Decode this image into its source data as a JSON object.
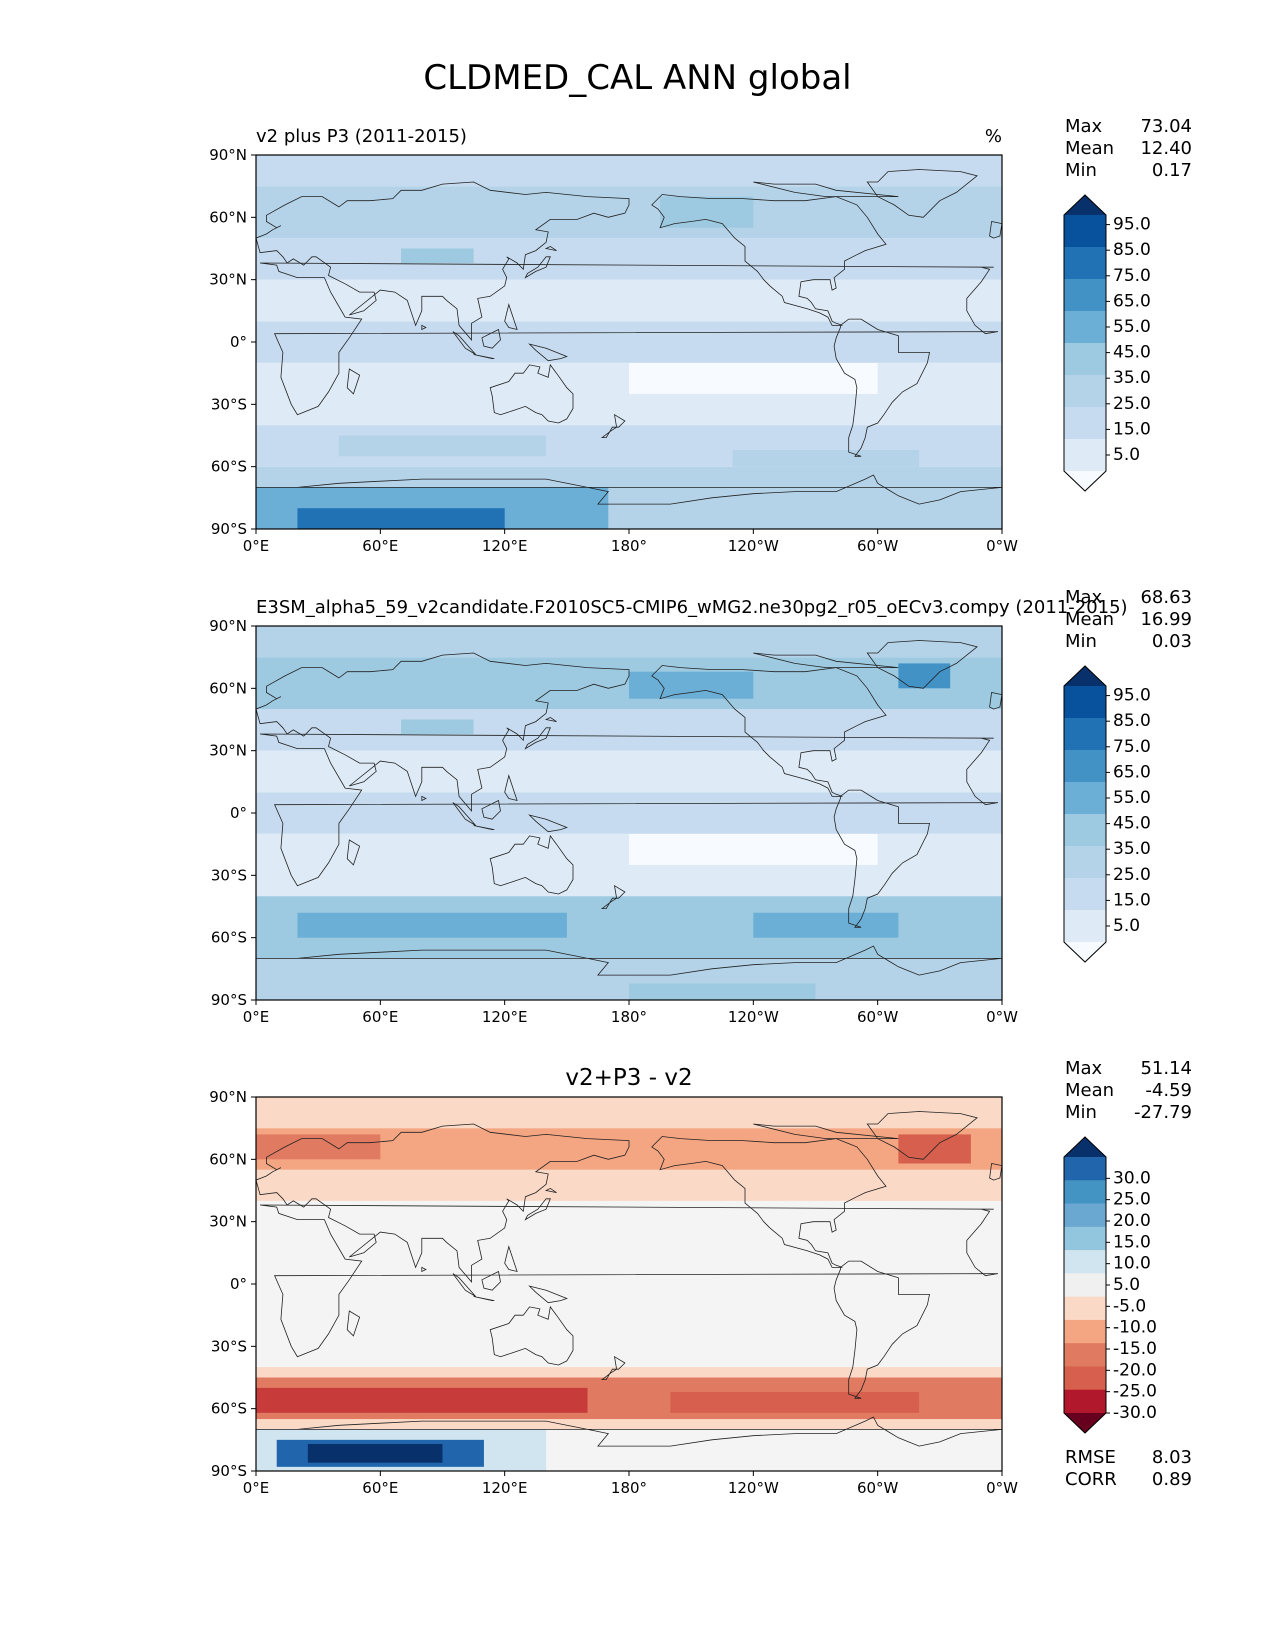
{
  "title": "CLDMED_CAL ANN global",
  "panels": [
    {
      "id": "test",
      "left_title": "v2 plus P3 (2011-2015)",
      "center_title": "",
      "units": "%",
      "stats": [
        {
          "label": "Max",
          "value": "73.04"
        },
        {
          "label": "Mean",
          "value": "12.40"
        },
        {
          "label": "Min",
          "value": "0.17"
        }
      ],
      "colorbar": {
        "labels": [
          "95.0",
          "85.0",
          "75.0",
          "65.0",
          "55.0",
          "45.0",
          "35.0",
          "25.0",
          "15.0",
          "5.0"
        ],
        "colors": [
          "#08306b",
          "#08519c",
          "#2171b5",
          "#4292c6",
          "#6baed6",
          "#9ecae1",
          "#b4d3e9",
          "#c6dbef",
          "#deebf7",
          "#f7fbff"
        ]
      },
      "field": {
        "scheme": "clouds_test"
      }
    },
    {
      "id": "ref",
      "left_title": "E3SM_alpha5_59_v2candidate.F2010SC5-CMIP6_wMG2.ne30pg2_r05_oECv3.compy (2011-2015)",
      "center_title": "",
      "units": "",
      "stats": [
        {
          "label": "Max",
          "value": "68.63"
        },
        {
          "label": "Mean",
          "value": "16.99"
        },
        {
          "label": "Min",
          "value": "0.03"
        }
      ],
      "colorbar": {
        "labels": [
          "95.0",
          "85.0",
          "75.0",
          "65.0",
          "55.0",
          "45.0",
          "35.0",
          "25.0",
          "15.0",
          "5.0"
        ],
        "colors": [
          "#08306b",
          "#08519c",
          "#2171b5",
          "#4292c6",
          "#6baed6",
          "#9ecae1",
          "#b4d3e9",
          "#c6dbef",
          "#deebf7",
          "#f7fbff"
        ]
      },
      "field": {
        "scheme": "clouds_ref"
      }
    },
    {
      "id": "diff",
      "left_title": "",
      "center_title": "v2+P3 - v2",
      "units": "",
      "stats": [
        {
          "label": "Max",
          "value": "51.14"
        },
        {
          "label": "Mean",
          "value": "-4.59"
        },
        {
          "label": "Min",
          "value": "-27.79"
        }
      ],
      "bottom_stats": [
        {
          "label": "RMSE",
          "value": "8.03"
        },
        {
          "label": "CORR",
          "value": "0.89"
        }
      ],
      "colorbar": {
        "labels": [
          "30.0",
          "25.0",
          "20.0",
          "15.0",
          "10.0",
          "5.0",
          "-5.0",
          "-10.0",
          "-15.0",
          "-20.0",
          "-25.0",
          "-30.0"
        ],
        "colors": [
          "#08306b",
          "#2166ac",
          "#4393c3",
          "#6aa8d2",
          "#92c5de",
          "#d1e5f0",
          "#f0f0f0",
          "#fbd9c7",
          "#f4a582",
          "#e07b62",
          "#d6604d",
          "#b2182b",
          "#67001f"
        ]
      },
      "field": {
        "scheme": "difference"
      }
    }
  ],
  "axes": {
    "y_ticks": [
      "90°N",
      "60°N",
      "30°N",
      "0°",
      "30°S",
      "60°S",
      "90°S"
    ],
    "x_ticks": [
      "0°E",
      "60°E",
      "120°E",
      "180°",
      "120°W",
      "60°W",
      "0°W"
    ]
  }
}
